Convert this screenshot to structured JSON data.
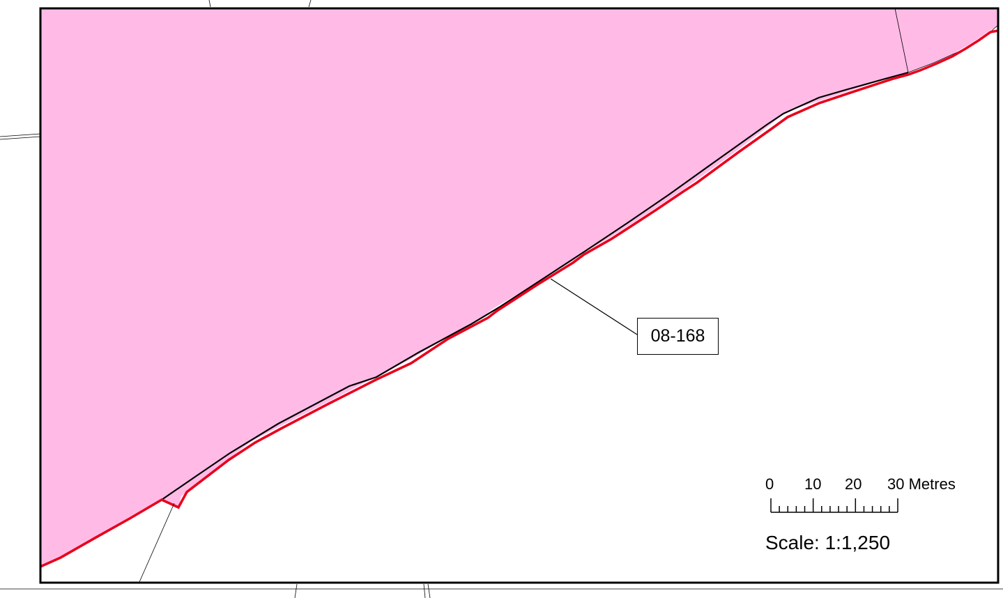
{
  "map": {
    "parcel_id_label": "08-168",
    "colors": {
      "parcel_fill": "#ffbbe6",
      "boundary_red": "#e8001c",
      "line_black": "#000000",
      "background": "#ffffff"
    }
  },
  "scale_bar": {
    "tick_labels": [
      "0",
      "10",
      "20",
      "30 Metres"
    ],
    "scale_text": "Scale: 1:1,250"
  }
}
